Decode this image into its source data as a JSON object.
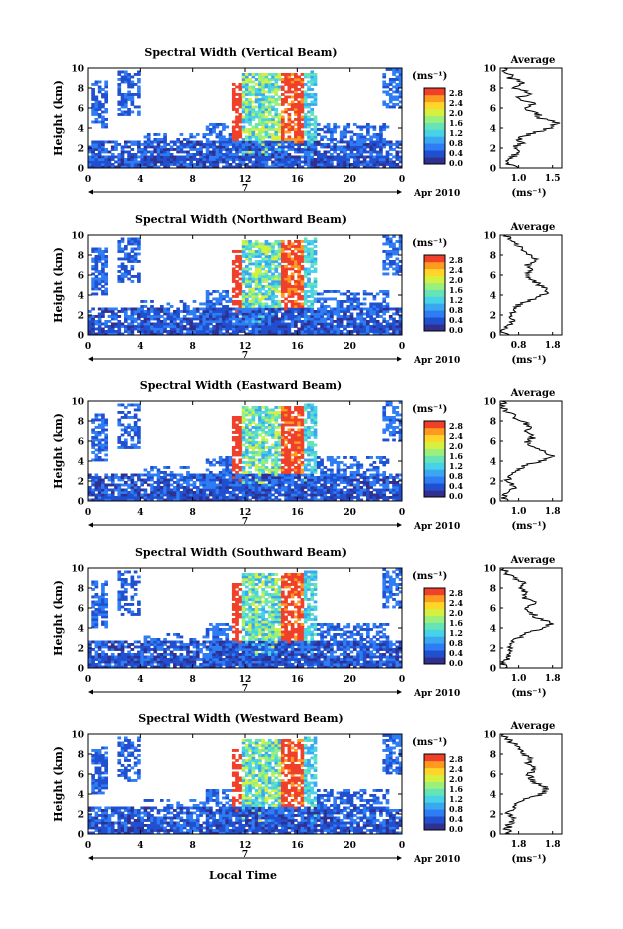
{
  "figure": {
    "date_label": "Apr 2010",
    "day_label": "7",
    "xlabel": "Local Time"
  },
  "colorbar": {
    "unit": "(ms⁻¹)",
    "ticks": [
      "0.0",
      "0.4",
      "0.8",
      "1.2",
      "1.6",
      "2.0",
      "2.4",
      "2.8"
    ],
    "colors": [
      "#303090",
      "#2050d0",
      "#2e7df5",
      "#3aa8f0",
      "#48d2e8",
      "#66e4b8",
      "#9af07a",
      "#d6f040",
      "#ffd52a",
      "#ff9a20",
      "#f0402a"
    ]
  },
  "chart_data": [
    {
      "type": "heatmap",
      "title": "Spectral Width (Vertical Beam)",
      "ylabel": "Height (km)",
      "xlim": [
        0,
        24
      ],
      "ylim": [
        0,
        10
      ],
      "xticks": [
        "0",
        "4",
        "8",
        "12",
        "16",
        "20",
        "0"
      ],
      "yticks": [
        "0",
        "2",
        "4",
        "6",
        "8",
        "10"
      ],
      "colorbar_label": "(ms⁻¹)",
      "colorbar_range": [
        0.0,
        2.8
      ],
      "profile": {
        "title": "Average",
        "xlabel": "(ms⁻¹)",
        "xlim": [
          0.75,
          1.6
        ],
        "xticks": [
          "1.0",
          "1.5"
        ],
        "heights": [
          0,
          0.5,
          1,
          1.5,
          2,
          2.5,
          3,
          3.5,
          4,
          4.5,
          5,
          5.5,
          6,
          6.5,
          7,
          7.5,
          8,
          8.5,
          9,
          9.5,
          10
        ],
        "values": [
          0.95,
          0.85,
          0.9,
          1.0,
          0.92,
          1.05,
          1.0,
          1.2,
          1.45,
          1.55,
          1.3,
          1.25,
          1.1,
          1.2,
          1.0,
          1.15,
          0.95,
          1.1,
          0.9,
          0.85,
          0.8
        ]
      }
    },
    {
      "type": "heatmap",
      "title": "Spectral Width (Northward Beam)",
      "ylabel": "Height (km)",
      "xlim": [
        0,
        24
      ],
      "ylim": [
        0,
        10
      ],
      "xticks": [
        "0",
        "4",
        "8",
        "12",
        "16",
        "20",
        "0"
      ],
      "yticks": [
        "0",
        "2",
        "4",
        "6",
        "8",
        "10"
      ],
      "colorbar_label": "(ms⁻¹)",
      "colorbar_range": [
        0.0,
        2.8
      ],
      "profile": {
        "title": "Average",
        "xlabel": "(ms⁻¹)",
        "xlim": [
          0.8,
          1.8
        ],
        "xticks": [
          "0.8",
          "1.8"
        ],
        "heights": [
          0,
          0.5,
          1,
          1.5,
          2,
          2.5,
          3,
          3.5,
          4,
          4.5,
          5,
          5.5,
          6,
          6.5,
          7,
          7.5,
          8,
          8.5,
          9,
          9.5,
          10
        ],
        "values": [
          0.9,
          0.85,
          0.95,
          1.0,
          0.95,
          1.05,
          1.1,
          1.3,
          1.5,
          1.6,
          1.45,
          1.3,
          1.2,
          1.35,
          1.25,
          1.4,
          1.3,
          1.2,
          1.05,
          0.95,
          0.9
        ]
      }
    },
    {
      "type": "heatmap",
      "title": "Spectral Width (Eastward Beam)",
      "ylabel": "Height (km)",
      "xlim": [
        0,
        24
      ],
      "ylim": [
        0,
        10
      ],
      "xticks": [
        "0",
        "4",
        "8",
        "12",
        "16",
        "20",
        "0"
      ],
      "yticks": [
        "0",
        "2",
        "4",
        "6",
        "8",
        "10"
      ],
      "colorbar_label": "(ms⁻¹)",
      "colorbar_range": [
        0.0,
        2.8
      ],
      "profile": {
        "title": "Average",
        "xlabel": "(ms⁻¹)",
        "xlim": [
          0.9,
          1.8
        ],
        "xticks": [
          "1.0",
          "1.8"
        ],
        "heights": [
          0,
          0.5,
          1,
          1.5,
          2,
          2.5,
          3,
          3.5,
          4,
          4.5,
          5,
          5.5,
          6,
          6.5,
          7,
          7.5,
          8,
          8.5,
          9,
          9.5,
          10
        ],
        "values": [
          1.0,
          0.95,
          1.05,
          1.1,
          1.0,
          1.05,
          1.1,
          1.25,
          1.5,
          1.65,
          1.5,
          1.35,
          1.3,
          1.4,
          1.25,
          1.35,
          1.2,
          1.1,
          1.0,
          0.95,
          0.92
        ]
      }
    },
    {
      "type": "heatmap",
      "title": "Spectral Width (Southward Beam)",
      "ylabel": "Height (km)",
      "xlim": [
        0,
        24
      ],
      "ylim": [
        0,
        10
      ],
      "xticks": [
        "0",
        "4",
        "8",
        "12",
        "16",
        "20",
        "0"
      ],
      "yticks": [
        "0",
        "2",
        "4",
        "6",
        "8",
        "10"
      ],
      "colorbar_label": "(ms⁻¹)",
      "colorbar_range": [
        0.0,
        2.8
      ],
      "profile": {
        "title": "Average",
        "xlabel": "(ms⁻¹)",
        "xlim": [
          0.9,
          1.8
        ],
        "xticks": [
          "1.0",
          "1.8"
        ],
        "heights": [
          0,
          0.5,
          1,
          1.5,
          2,
          2.5,
          3,
          3.5,
          4,
          4.5,
          5,
          5.5,
          6,
          6.5,
          7,
          7.5,
          8,
          8.5,
          9,
          9.5,
          10
        ],
        "values": [
          1.0,
          0.95,
          1.0,
          1.1,
          1.05,
          1.1,
          1.15,
          1.3,
          1.55,
          1.65,
          1.45,
          1.35,
          1.3,
          1.4,
          1.25,
          1.3,
          1.2,
          1.3,
          1.1,
          1.0,
          0.95
        ]
      }
    },
    {
      "type": "heatmap",
      "title": "Spectral Width (Westward Beam)",
      "ylabel": "Height (km)",
      "xlim": [
        0,
        24
      ],
      "ylim": [
        0,
        10
      ],
      "xticks": [
        "0",
        "4",
        "8",
        "12",
        "16",
        "20",
        "0"
      ],
      "yticks": [
        "0",
        "2",
        "4",
        "6",
        "8",
        "10"
      ],
      "colorbar_label": "(ms⁻¹)",
      "colorbar_range": [
        0.0,
        2.8
      ],
      "profile": {
        "title": "Average",
        "xlabel": "(ms⁻¹)",
        "xlim": [
          0.9,
          1.8
        ],
        "xticks": [
          "1.8",
          "1.8"
        ],
        "heights": [
          0,
          0.5,
          1,
          1.5,
          2,
          2.5,
          3,
          3.5,
          4,
          4.5,
          5,
          5.5,
          6,
          6.5,
          7,
          7.5,
          8,
          8.5,
          9,
          9.5,
          10
        ],
        "values": [
          1.05,
          1.0,
          1.05,
          1.1,
          1.0,
          1.05,
          1.15,
          1.3,
          1.5,
          1.6,
          1.45,
          1.35,
          1.3,
          1.4,
          1.3,
          1.35,
          1.25,
          1.2,
          1.1,
          1.0,
          0.95
        ]
      }
    }
  ]
}
